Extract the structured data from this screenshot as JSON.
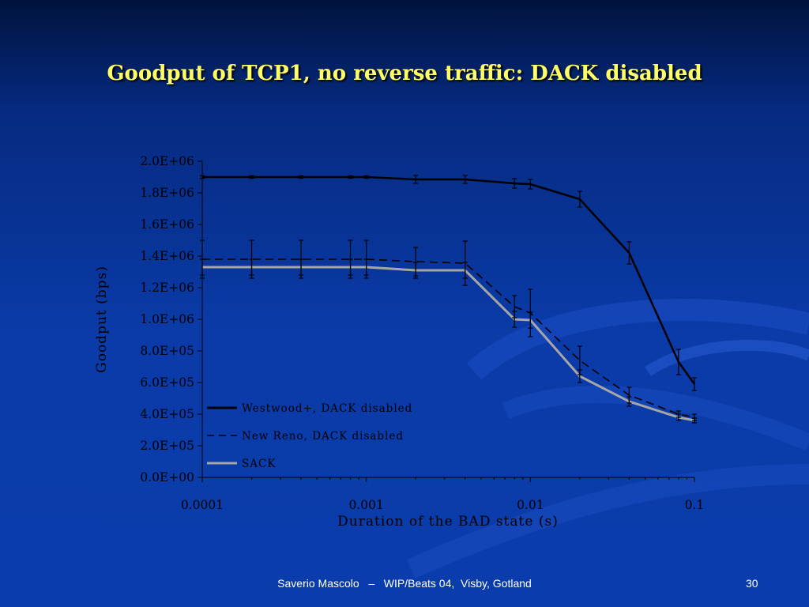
{
  "slide": {
    "title": "Goodput of  TCP1, no reverse traffic: DACK disabled",
    "footer": "Saverio Mascolo   –   WIP/Beats 04,  Visby, Gotland",
    "page_number": "30",
    "colors": {
      "title": "#ffff66",
      "background": "#0a3ba8",
      "footer_text": "#ffffff"
    }
  },
  "chart_data": {
    "type": "line",
    "title": "",
    "xlabel": "Duration of the BAD state (s)",
    "ylabel": "Goodput (bps)",
    "x_scale": "log",
    "xlim": [
      0.0001,
      0.1
    ],
    "ylim": [
      0,
      2000000
    ],
    "x_tick_labels": [
      "0.0001",
      "0.001",
      "0.01",
      "0.1"
    ],
    "y_tick_labels": [
      "0.0E+00",
      "2.0E+05",
      "4.0E+05",
      "6.0E+05",
      "8.0E+05",
      "1.0E+06",
      "1.2E+06",
      "1.4E+06",
      "1.6E+06",
      "1.8E+06",
      "2.0E+06"
    ],
    "grid": false,
    "legend_position": "bottom-left",
    "series": [
      {
        "name": "Westwood+, DACK disabled",
        "style": "solid",
        "color": "#000000",
        "x": [
          0.0001,
          0.0002,
          0.0004,
          0.0008,
          0.001,
          0.002,
          0.004,
          0.008,
          0.01,
          0.02,
          0.04,
          0.08,
          0.1
        ],
        "y": [
          1900000,
          1900000,
          1900000,
          1900000,
          1900000,
          1885000,
          1885000,
          1860000,
          1855000,
          1760000,
          1420000,
          730000,
          590000
        ],
        "err": [
          8000,
          8000,
          8000,
          8000,
          8000,
          25000,
          25000,
          30000,
          30000,
          50000,
          70000,
          80000,
          40000
        ]
      },
      {
        "name": "New Reno, DACK disabled",
        "style": "dashed",
        "color": "#000000",
        "x": [
          0.0001,
          0.0002,
          0.0004,
          0.0008,
          0.001,
          0.002,
          0.004,
          0.008,
          0.01,
          0.02,
          0.04,
          0.08,
          0.1
        ],
        "y": [
          1380000,
          1380000,
          1380000,
          1380000,
          1380000,
          1365000,
          1355000,
          1080000,
          1040000,
          740000,
          520000,
          400000,
          380000
        ],
        "err": [
          120000,
          120000,
          120000,
          120000,
          120000,
          90000,
          140000,
          70000,
          150000,
          90000,
          50000,
          20000,
          20000
        ]
      },
      {
        "name": "SACK",
        "style": "solid",
        "color": "#a6a6a6",
        "x": [
          0.0001,
          0.0002,
          0.0004,
          0.0008,
          0.001,
          0.002,
          0.004,
          0.008,
          0.01,
          0.02,
          0.04,
          0.08,
          0.1
        ],
        "y": [
          1330000,
          1330000,
          1330000,
          1330000,
          1330000,
          1310000,
          1310000,
          1000000,
          995000,
          640000,
          480000,
          380000,
          360000
        ],
        "err": [
          50000,
          50000,
          50000,
          50000,
          50000,
          50000,
          50000,
          50000,
          50000,
          40000,
          30000,
          20000,
          15000
        ]
      }
    ]
  }
}
